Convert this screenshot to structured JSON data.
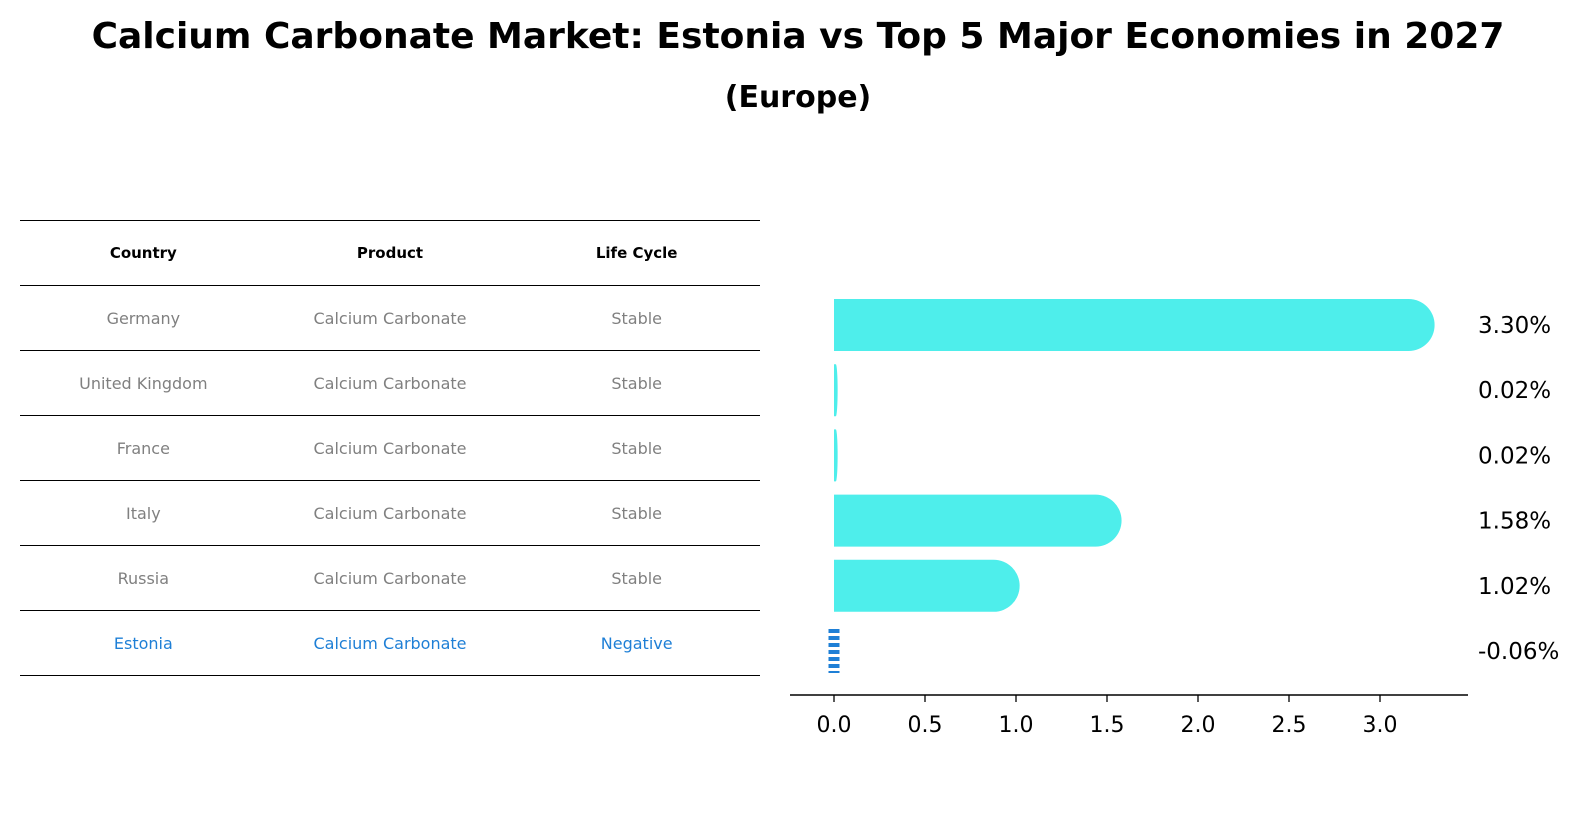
{
  "title": "Calcium Carbonate Market: Estonia vs Top 5 Major Economies in 2027",
  "subtitle": "(Europe)",
  "table": {
    "headers": [
      "Country",
      "Product",
      "Life Cycle"
    ],
    "rows": [
      [
        "Germany",
        "Calcium Carbonate",
        "Stable"
      ],
      [
        "United Kingdom",
        "Calcium Carbonate",
        "Stable"
      ],
      [
        "France",
        "Calcium Carbonate",
        "Stable"
      ],
      [
        "Italy",
        "Calcium Carbonate",
        "Stable"
      ],
      [
        "Russia",
        "Calcium Carbonate",
        "Stable"
      ],
      [
        "Estonia",
        "Calcium Carbonate",
        "Negative"
      ]
    ],
    "highlight_row": 5
  },
  "colors": {
    "bar": "#4eeeeb",
    "highlight": "#1e7fd6",
    "muted_text": "#808080"
  },
  "chart_data": {
    "type": "bar",
    "orientation": "horizontal",
    "categories": [
      "Germany",
      "United Kingdom",
      "France",
      "Italy",
      "Russia",
      "Estonia"
    ],
    "values": [
      3.3,
      0.02,
      0.02,
      1.58,
      1.02,
      -0.06
    ],
    "value_labels": [
      "3.30%",
      "0.02%",
      "0.02%",
      "1.58%",
      "1.02%",
      "-0.06%"
    ],
    "xlim": [
      -0.23,
      3.45
    ],
    "xticks": [
      0.0,
      0.5,
      1.0,
      1.5,
      2.0,
      2.5,
      3.0
    ],
    "xtick_labels": [
      "0.0",
      "0.5",
      "1.0",
      "1.5",
      "2.0",
      "2.5",
      "3.0"
    ],
    "grid": false
  }
}
